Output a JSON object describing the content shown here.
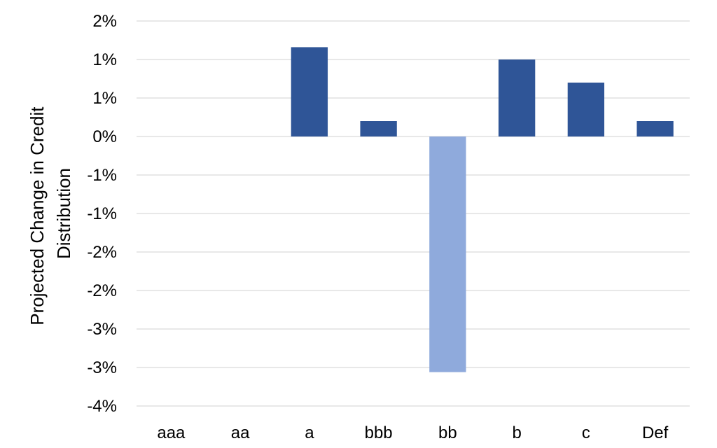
{
  "chart_data": {
    "type": "bar",
    "title": "",
    "xlabel": "",
    "ylabel_lines": [
      "Projected Change in Credit",
      "Distribution"
    ],
    "categories": [
      "aaa",
      "aa",
      "a",
      "bbb",
      "bb",
      "b",
      "c",
      "Def"
    ],
    "values": [
      0,
      0,
      1.16,
      0.2,
      -3.06,
      1.0,
      0.7,
      0.2
    ],
    "ylim": [
      -3.5,
      1.5
    ],
    "y_ticks": [
      {
        "value": 1.5,
        "label": "2%"
      },
      {
        "value": 1.0,
        "label": "1%"
      },
      {
        "value": 0.5,
        "label": "1%"
      },
      {
        "value": 0.0,
        "label": "0%"
      },
      {
        "value": -0.5,
        "label": "-1%"
      },
      {
        "value": -1.0,
        "label": "-1%"
      },
      {
        "value": -1.5,
        "label": "-2%"
      },
      {
        "value": -2.0,
        "label": "-2%"
      },
      {
        "value": -2.5,
        "label": "-3%"
      },
      {
        "value": -3.0,
        "label": "-3%"
      },
      {
        "value": -3.5,
        "label": "-4%"
      }
    ],
    "grid": true,
    "legend": false,
    "colors": {
      "positive": "#2f5597",
      "negative": "#8faadc",
      "grid": "#d9d9d9"
    }
  }
}
